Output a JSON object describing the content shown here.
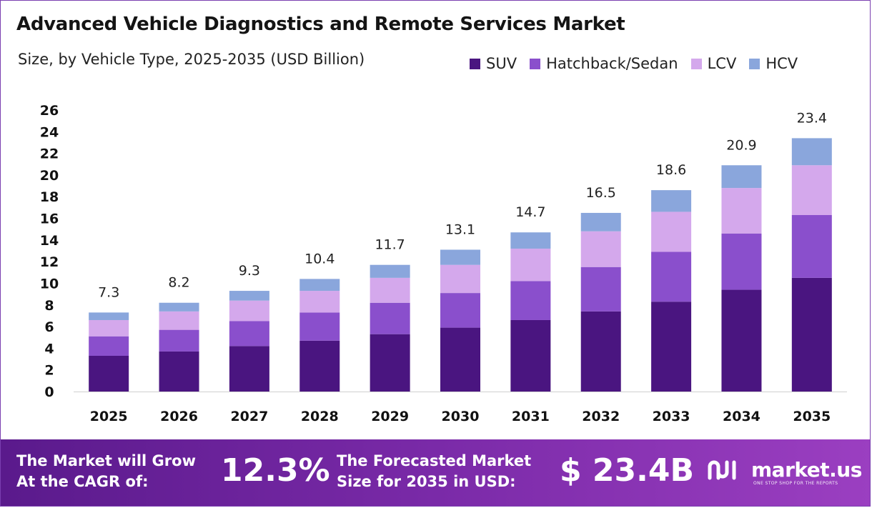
{
  "header": {
    "title": "Advanced Vehicle Diagnostics and Remote Services Market",
    "subtitle": "Size, by Vehicle Type, 2025-2035 (USD Billion)"
  },
  "chart_data": {
    "type": "bar",
    "stacked": true,
    "title": "Advanced Vehicle Diagnostics and Remote Services Market",
    "subtitle": "Size, by Vehicle Type, 2025-2035 (USD Billion)",
    "categories": [
      "2025",
      "2026",
      "2027",
      "2028",
      "2029",
      "2030",
      "2031",
      "2032",
      "2033",
      "2034",
      "2035"
    ],
    "series": [
      {
        "name": "SUV",
        "color": "#4a1580",
        "values": [
          3.3,
          3.7,
          4.2,
          4.7,
          5.3,
          5.9,
          6.6,
          7.4,
          8.3,
          9.4,
          10.5
        ]
      },
      {
        "name": "Hatchback/Sedan",
        "color": "#8a4fcc",
        "values": [
          1.8,
          2.0,
          2.3,
          2.6,
          2.9,
          3.2,
          3.6,
          4.1,
          4.6,
          5.2,
          5.8
        ]
      },
      {
        "name": "LCV",
        "color": "#d4a8ec",
        "values": [
          1.5,
          1.7,
          1.9,
          2.0,
          2.3,
          2.6,
          3.0,
          3.3,
          3.7,
          4.2,
          4.6
        ]
      },
      {
        "name": "HCV",
        "color": "#8aa6dc",
        "values": [
          0.7,
          0.8,
          0.9,
          1.1,
          1.2,
          1.4,
          1.5,
          1.7,
          2.0,
          2.1,
          2.5
        ]
      }
    ],
    "totals": [
      7.3,
      8.2,
      9.3,
      10.4,
      11.7,
      13.1,
      14.7,
      16.5,
      18.6,
      20.9,
      23.4
    ],
    "total_labels": [
      "7.3",
      "8.2",
      "9.3",
      "10.4",
      "11.7",
      "13.1",
      "14.7",
      "16.5",
      "18.6",
      "20.9",
      "23.4"
    ],
    "y_ticks": [
      "0",
      "2",
      "4",
      "6",
      "8",
      "10",
      "12",
      "14",
      "16",
      "18",
      "20",
      "22",
      "24",
      "26"
    ],
    "ylim": [
      0,
      26
    ],
    "grid": false,
    "legend_position": "top-right"
  },
  "footer": {
    "cagr_line1": "The Market will Grow",
    "cagr_line2": "At the CAGR of:",
    "cagr_value": "12.3%",
    "forecast_line1": "The Forecasted Market",
    "forecast_line2": "Size for 2035 in USD:",
    "forecast_value": "$ 23.4B",
    "brand_name": "market.us",
    "brand_tagline": "ONE STOP SHOP FOR THE REPORTS"
  },
  "colors": {
    "footer_start": "#5a1a8c",
    "footer_end": "#9b3fc1",
    "border": "#7b3fb0"
  },
  "icons": {
    "brand_logo": "market-us-logo-icon"
  }
}
